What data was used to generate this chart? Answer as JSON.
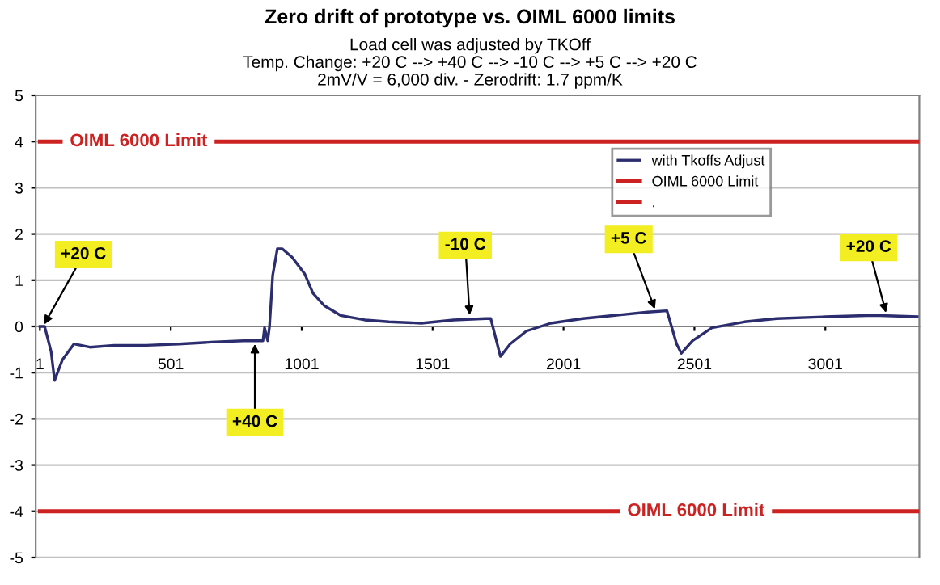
{
  "chart_data": {
    "type": "line",
    "title": "Zero drift of prototype vs. OIML 6000 limits",
    "subtitle": "Load cell was adjusted by TKOff\nTemp. Change: +20 C --> +40 C --> -10 C --> +5 C --> +20 C\n2mV/V = 6,000 div. - Zerodrift: 1.7 ppm/K",
    "series": [
      {
        "name": "with Tkoffs Adjust",
        "color": "#2b2d6e",
        "x": [
          1,
          19,
          44,
          57,
          87,
          131,
          192,
          285,
          408,
          532,
          655,
          779,
          853,
          859,
          871,
          878,
          890,
          908,
          927,
          964,
          1013,
          1044,
          1087,
          1149,
          1242,
          1334,
          1458,
          1581,
          1704,
          1723,
          1760,
          1797,
          1859,
          1952,
          2075,
          2198,
          2322,
          2396,
          2433,
          2451,
          2494,
          2568,
          2692,
          2815,
          3000,
          3185,
          3352
        ],
        "values": [
          0,
          0,
          -0.55,
          -1.17,
          -0.72,
          -0.38,
          -0.45,
          -0.41,
          -0.41,
          -0.38,
          -0.34,
          -0.31,
          -0.31,
          -0.03,
          -0.31,
          0,
          1.1,
          1.68,
          1.68,
          1.5,
          1.13,
          0.72,
          0.45,
          0.24,
          0.14,
          0.1,
          0.07,
          0.14,
          0.17,
          0.17,
          -0.65,
          -0.38,
          -0.1,
          0.07,
          0.17,
          0.24,
          0.31,
          0.34,
          -0.38,
          -0.58,
          -0.31,
          -0.03,
          0.1,
          0.17,
          0.21,
          0.24,
          0.21
        ]
      },
      {
        "name": "OIML 6000 Limit",
        "color": "#cc2222",
        "x": [
          1,
          3360
        ],
        "values": [
          4,
          4
        ]
      },
      {
        "name": ".",
        "color": "#cc2222",
        "x": [
          1,
          3360
        ],
        "values": [
          -4,
          -4
        ]
      }
    ],
    "annotations": [
      {
        "text": "OIML 6000 Limit",
        "x": 378,
        "y": 4
      },
      {
        "text": "OIML 6000 Limit",
        "x": 2507,
        "y": -4
      },
      {
        "text": "+20 C",
        "x": 13,
        "y": 0
      },
      {
        "text": "+40 C",
        "x": 822,
        "y": -0.33
      },
      {
        "text": "-10 C",
        "x": 1643,
        "y": 0.2
      },
      {
        "text": "+5 C",
        "x": 2353,
        "y": 0.33
      },
      {
        "text": "+20 C",
        "x": 3235,
        "y": 0.25
      }
    ],
    "xlim": [
      -15,
      3360
    ],
    "xticks": [
      1,
      501,
      1001,
      1501,
      2001,
      2501,
      3001
    ],
    "ylim": [
      -5,
      5
    ],
    "yticks": [
      -5,
      -4,
      -3,
      -2,
      -1,
      0,
      1,
      2,
      3,
      4,
      5
    ],
    "grid": "y",
    "legend": "top right",
    "marker": "none",
    "line_style": "solid"
  }
}
